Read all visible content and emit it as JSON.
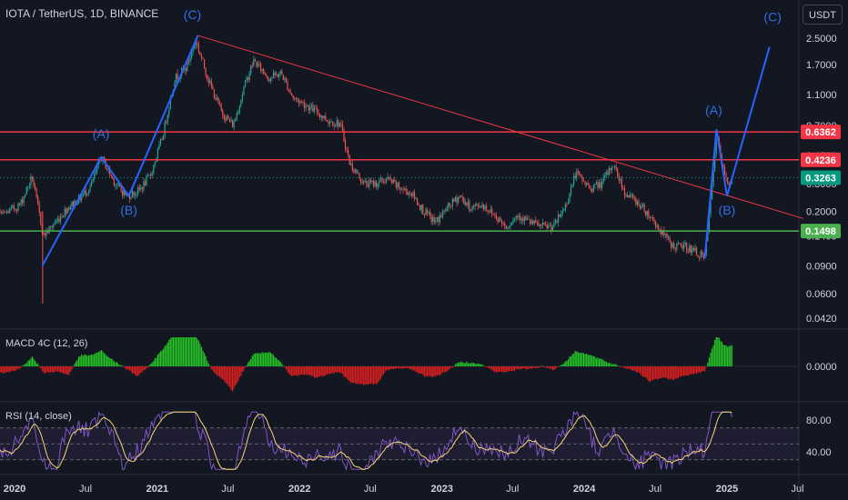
{
  "header": {
    "symbol": "IOTA / TetherUS, 1D, BINANCE",
    "currency": "USDT"
  },
  "colors": {
    "background": "#131722",
    "candle_up": "#26a69a",
    "candle_down": "#ef5350",
    "resistance": "#f23645",
    "support": "#4caf50",
    "trendline": "#f23645",
    "wave": "#2962ff",
    "macd_up": "#26c826",
    "macd_down": "#e02020",
    "rsi": "#7e57c2",
    "rsi_ma": "#f5d76e",
    "last_price": "#089981"
  },
  "chart_data": [
    {
      "type": "candlestick",
      "pane": "price",
      "scale": "log",
      "y_ticks": [
        "2.5000",
        "1.7000",
        "1.1000",
        "0.7000",
        "0.4500",
        "0.3000",
        "0.2000",
        "0.1400",
        "0.0900",
        "0.0600",
        "0.0420"
      ],
      "x_ticks": [
        "2020",
        "Jul",
        "2021",
        "Jul",
        "2022",
        "Jul",
        "2023",
        "Jul",
        "2024",
        "Jul",
        "2025",
        "Jul"
      ],
      "close_series": [
        [
          "2019-10-01",
          0.26
        ],
        [
          "2019-12-01",
          0.19
        ],
        [
          "2020-01-15",
          0.22
        ],
        [
          "2020-02-15",
          0.33
        ],
        [
          "2020-03-15",
          0.14
        ],
        [
          "2020-04-15",
          0.17
        ],
        [
          "2020-05-15",
          0.21
        ],
        [
          "2020-06-15",
          0.24
        ],
        [
          "2020-07-15",
          0.29
        ],
        [
          "2020-08-10",
          0.44
        ],
        [
          "2020-09-15",
          0.3
        ],
        [
          "2020-10-15",
          0.25
        ],
        [
          "2020-11-15",
          0.27
        ],
        [
          "2020-12-15",
          0.34
        ],
        [
          "2021-01-15",
          0.6
        ],
        [
          "2021-02-15",
          1.4
        ],
        [
          "2021-03-15",
          1.6
        ],
        [
          "2021-04-10",
          2.4
        ],
        [
          "2021-05-15",
          1.3
        ],
        [
          "2021-06-15",
          0.85
        ],
        [
          "2021-07-15",
          0.7
        ],
        [
          "2021-08-15",
          1.3
        ],
        [
          "2021-09-05",
          1.8
        ],
        [
          "2021-10-15",
          1.4
        ],
        [
          "2021-11-15",
          1.5
        ],
        [
          "2021-12-15",
          1.05
        ],
        [
          "2022-01-15",
          0.95
        ],
        [
          "2022-02-15",
          0.85
        ],
        [
          "2022-03-15",
          0.75
        ],
        [
          "2022-04-15",
          0.72
        ],
        [
          "2022-05-10",
          0.4
        ],
        [
          "2022-06-15",
          0.3
        ],
        [
          "2022-07-15",
          0.3
        ],
        [
          "2022-08-15",
          0.32
        ],
        [
          "2022-09-15",
          0.28
        ],
        [
          "2022-10-15",
          0.26
        ],
        [
          "2022-11-15",
          0.2
        ],
        [
          "2022-12-15",
          0.17
        ],
        [
          "2023-01-15",
          0.21
        ],
        [
          "2023-02-15",
          0.25
        ],
        [
          "2023-03-15",
          0.21
        ],
        [
          "2023-04-15",
          0.22
        ],
        [
          "2023-05-15",
          0.19
        ],
        [
          "2023-06-15",
          0.16
        ],
        [
          "2023-07-15",
          0.19
        ],
        [
          "2023-08-15",
          0.17
        ],
        [
          "2023-09-15",
          0.16
        ],
        [
          "2023-10-15",
          0.16
        ],
        [
          "2023-11-15",
          0.22
        ],
        [
          "2023-12-10",
          0.35
        ],
        [
          "2024-01-15",
          0.28
        ],
        [
          "2024-02-15",
          0.3
        ],
        [
          "2024-03-15",
          0.4
        ],
        [
          "2024-04-15",
          0.26
        ],
        [
          "2024-05-15",
          0.23
        ],
        [
          "2024-06-15",
          0.19
        ],
        [
          "2024-07-15",
          0.15
        ],
        [
          "2024-08-15",
          0.12
        ],
        [
          "2024-09-15",
          0.12
        ],
        [
          "2024-10-15",
          0.11
        ],
        [
          "2024-11-05",
          0.1
        ],
        [
          "2024-11-25",
          0.3
        ],
        [
          "2024-12-05",
          0.62
        ],
        [
          "2024-12-20",
          0.38
        ],
        [
          "2025-01-05",
          0.3
        ],
        [
          "2025-01-15",
          0.3263
        ]
      ],
      "horizontal_levels": [
        {
          "label": "0.6362",
          "value": 0.6362,
          "color": "#f23645",
          "style": "red"
        },
        {
          "label": "0.4236",
          "value": 0.4236,
          "color": "#f23645",
          "style": "red"
        },
        {
          "label": "0.3263",
          "value": 0.3263,
          "color": "#089981",
          "style": "last"
        },
        {
          "label": "0.1498",
          "value": 0.1498,
          "color": "#4caf50",
          "style": "green"
        }
      ],
      "trendline": [
        [
          "2021-04-15",
          2.6
        ],
        [
          "2025-07-15",
          0.18
        ]
      ],
      "wave_lines": [
        [
          [
            "2020-03-12",
            0.09
          ],
          [
            "2020-08-10",
            0.44
          ],
          [
            "2020-10-20",
            0.25
          ],
          [
            "2021-04-15",
            2.6
          ]
        ],
        [
          [
            "2024-11-05",
            0.1
          ],
          [
            "2024-12-05",
            0.66
          ],
          [
            "2025-01-01",
            0.25
          ],
          [
            "2025-04-20",
            2.2
          ]
        ]
      ],
      "wave_labels": [
        {
          "text": "(A)",
          "x": "2020-08-10",
          "y": 0.58
        },
        {
          "text": "(B)",
          "x": "2020-10-20",
          "y": 0.19
        },
        {
          "text": "(C)",
          "x": "2021-04-01",
          "y": 3.3
        },
        {
          "text": "(A)",
          "x": "2024-11-28",
          "y": 0.82
        },
        {
          "text": "(B)",
          "x": "2025-01-01",
          "y": 0.19
        },
        {
          "text": "(C)",
          "x": "2025-04-28",
          "y": 3.2
        }
      ]
    },
    {
      "type": "histogram",
      "pane": "macd",
      "label": "MACD 4C (12, 26)",
      "y_ticks": [
        "0.0000"
      ]
    },
    {
      "type": "line",
      "pane": "rsi",
      "label": "RSI (14, close)",
      "y_ticks": [
        "80.00",
        "40.00"
      ]
    }
  ]
}
